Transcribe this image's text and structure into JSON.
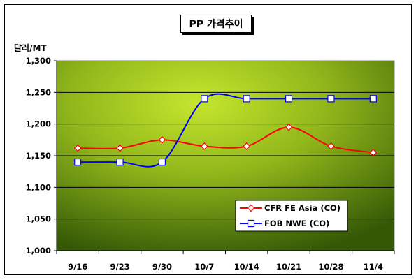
{
  "chart_data": {
    "type": "line",
    "title": "PP 가격추이",
    "ylabel": "달러/MT",
    "xlabel": "",
    "categories": [
      "9/16",
      "9/23",
      "9/30",
      "10/7",
      "10/14",
      "10/21",
      "10/28",
      "11/4"
    ],
    "y_ticks": [
      "1,000",
      "1,050",
      "1,100",
      "1,150",
      "1,200",
      "1,250",
      "1,300"
    ],
    "ylim": [
      1000,
      1300
    ],
    "grid": "horizontal",
    "legend_position": "bottom-right",
    "series": [
      {
        "name": "CFR FE Asia (CO)",
        "values": [
          1162,
          1162,
          1175,
          1165,
          1165,
          1195,
          1165,
          1155
        ],
        "color": "#ff0000",
        "marker": "diamond"
      },
      {
        "name": "FOB NWE (CO)",
        "values": [
          1140,
          1140,
          1140,
          1240,
          1240,
          1240,
          1240,
          1240
        ],
        "color": "#0000ff",
        "marker": "square"
      }
    ]
  }
}
